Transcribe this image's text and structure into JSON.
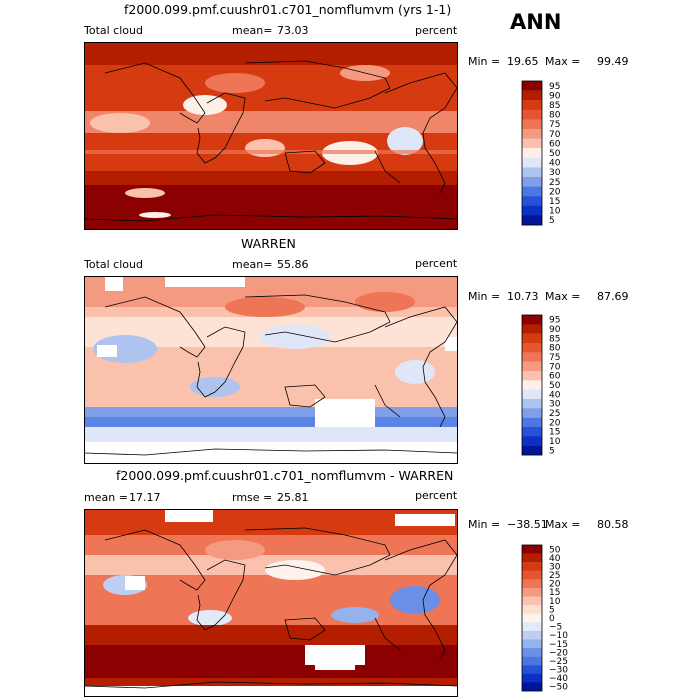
{
  "season": "ANN",
  "chart_data": [
    {
      "type": "heatmap",
      "title": "f2000.099.pmf.cuushr01.c701_nomflumvm (yrs 1-1)",
      "variable": "Total cloud",
      "mean_label": "mean=",
      "mean": "73.03",
      "units": "percent",
      "min_label": "Min =",
      "min": "19.65",
      "max_label": "Max =",
      "max": "99.49",
      "levels": [
        "95",
        "90",
        "85",
        "80",
        "75",
        "70",
        "60",
        "50",
        "40",
        "30",
        "25",
        "20",
        "15",
        "10",
        "5"
      ],
      "colors": [
        "#8b0000",
        "#b41e00",
        "#d63a10",
        "#e45530",
        "#ee7656",
        "#f59a80",
        "#fac2ac",
        "#fdf0e8",
        "#dfe6f7",
        "#aec4ef",
        "#7fa0e8",
        "#4c77e3",
        "#2651d8",
        "#0c2fc4",
        "#00159a"
      ]
    },
    {
      "type": "heatmap",
      "title": "WARREN",
      "variable": "Total cloud",
      "mean_label": "mean=",
      "mean": "55.86",
      "units": "percent",
      "min_label": "Min =",
      "min": "10.73",
      "max_label": "Max =",
      "max": "87.69",
      "levels": [
        "95",
        "90",
        "85",
        "80",
        "75",
        "70",
        "60",
        "50",
        "40",
        "30",
        "25",
        "20",
        "15",
        "10",
        "5"
      ],
      "colors": [
        "#8b0000",
        "#b41e00",
        "#d63a10",
        "#e45530",
        "#ee7656",
        "#f59a80",
        "#fac2ac",
        "#fdf0e8",
        "#dfe6f7",
        "#aec4ef",
        "#7fa0e8",
        "#4c77e3",
        "#2651d8",
        "#0c2fc4",
        "#00159a"
      ]
    },
    {
      "type": "heatmap",
      "title": "f2000.099.pmf.cuushr01.c701_nomflumvm - WARREN",
      "variable": "",
      "mean_label": "mean =",
      "mean": "17.17",
      "rmse_label": "rmse =",
      "rmse": "25.81",
      "units": "percent",
      "min_label": "Min =",
      "min": "−38.51",
      "max_label": "Max =",
      "max": "80.58",
      "levels": [
        "50",
        "40",
        "30",
        "25",
        "20",
        "15",
        "10",
        "5",
        "0",
        "−5",
        "−10",
        "−15",
        "−20",
        "−25",
        "−30",
        "−40",
        "−50"
      ],
      "colors": [
        "#8b0000",
        "#b41e00",
        "#d63a10",
        "#e45530",
        "#ee7656",
        "#f59a80",
        "#fac2ac",
        "#fde0d0",
        "#fdf3ec",
        "#e2e9f8",
        "#bccff2",
        "#94b2ec",
        "#6b8fe6",
        "#4c77e3",
        "#2651d8",
        "#0c2fc4",
        "#00159a"
      ]
    }
  ]
}
